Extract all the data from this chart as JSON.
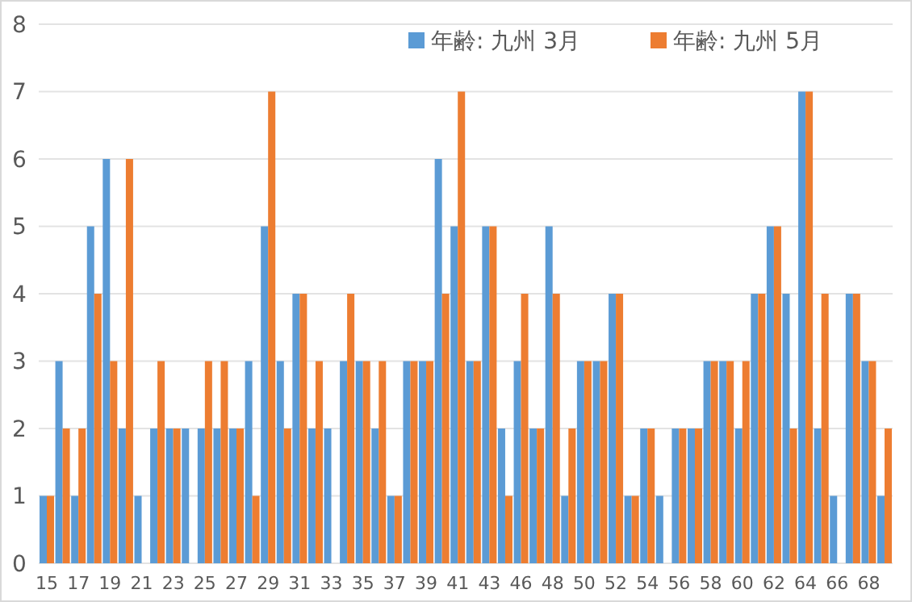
{
  "chart_data": {
    "type": "bar",
    "categories": [
      "15",
      null,
      "17",
      null,
      "19",
      null,
      "21",
      null,
      "23",
      null,
      "25",
      null,
      "27",
      null,
      "29",
      null,
      "31",
      null,
      "33",
      null,
      "35",
      null,
      "37",
      null,
      "39",
      null,
      "41",
      null,
      "43",
      null,
      "46",
      null,
      "48",
      null,
      "50",
      null,
      "52",
      null,
      "54",
      null,
      "56",
      null,
      "58",
      null,
      "60",
      null,
      "62",
      null,
      "64",
      null,
      "66",
      null,
      "68",
      null
    ],
    "series": [
      {
        "name": "年齢: 九州 3月",
        "color": "#5b9bd5",
        "values": [
          1,
          3,
          1,
          5,
          6,
          2,
          1,
          2,
          2,
          2,
          2,
          2,
          2,
          3,
          5,
          3,
          4,
          2,
          2,
          3,
          3,
          2,
          1,
          3,
          3,
          6,
          5,
          3,
          5,
          2,
          3,
          2,
          5,
          1,
          3,
          3,
          4,
          1,
          2,
          1,
          2,
          2,
          3,
          3,
          2,
          4,
          5,
          4,
          7,
          2,
          1,
          4,
          3,
          1
        ]
      },
      {
        "name": "年齢: 九州 5月",
        "color": "#ed7d31",
        "values": [
          1,
          2,
          2,
          4,
          3,
          6,
          0,
          3,
          2,
          0,
          3,
          3,
          2,
          1,
          7,
          2,
          4,
          3,
          0,
          4,
          3,
          3,
          1,
          3,
          3,
          4,
          7,
          3,
          5,
          1,
          4,
          2,
          4,
          2,
          3,
          3,
          4,
          1,
          2,
          0,
          2,
          2,
          3,
          3,
          3,
          4,
          5,
          2,
          7,
          4,
          0,
          4,
          3,
          2
        ]
      }
    ],
    "ylim": [
      0,
      8
    ],
    "yticks": [
      0,
      1,
      2,
      3,
      4,
      5,
      6,
      7,
      8
    ],
    "grid": "y",
    "legend": "top right"
  }
}
